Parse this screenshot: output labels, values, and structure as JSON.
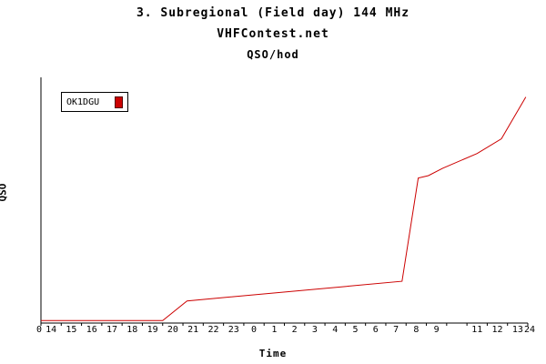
{
  "header": {
    "title": "3. Subregional (Field day) 144 MHz",
    "subtitle": "VHFContest.net",
    "chart_label": "QSO/hod"
  },
  "axes": {
    "x_label": "Time",
    "y_label": "QSO",
    "origin_label": "0",
    "end_label": "24"
  },
  "legend": {
    "entries": [
      {
        "label": "OK1DGU",
        "color": "#cc0000"
      }
    ]
  },
  "chart_data": {
    "type": "line",
    "title": "3. Subregional (Field day) 144 MHz",
    "subtitle": "VHFContest.net",
    "units_label": "QSO/hod",
    "xlabel": "Time",
    "ylabel": "QSO",
    "x_tick_labels": [
      "14",
      "15",
      "16",
      "17",
      "18",
      "19",
      "20",
      "21",
      "22",
      "23",
      "0",
      "1",
      "2",
      "3",
      "4",
      "5",
      "6",
      "7",
      "8",
      "9",
      "",
      "11",
      "12",
      "13"
    ],
    "xlim": [
      0,
      24
    ],
    "ylim": [
      0,
      100
    ],
    "grid": false,
    "legend_position": "top-left-inside",
    "series": [
      {
        "name": "OK1DGU",
        "color": "#cc0000",
        "points": [
          [
            0,
            1
          ],
          [
            6,
            1
          ],
          [
            7.2,
            9
          ],
          [
            17.8,
            17
          ],
          [
            18.6,
            59
          ],
          [
            19.1,
            60
          ],
          [
            19.8,
            63
          ],
          [
            21.5,
            69
          ],
          [
            22.7,
            75
          ],
          [
            23.9,
            92
          ]
        ]
      }
    ]
  }
}
